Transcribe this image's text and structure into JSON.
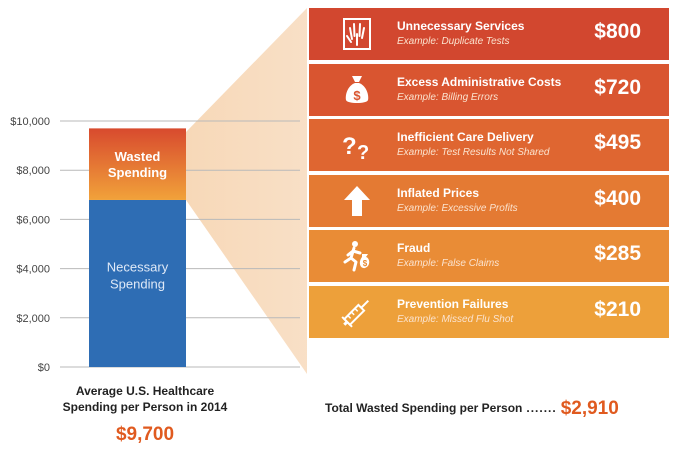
{
  "chart_data": {
    "type": "bar",
    "stacked": true,
    "categories": [
      "Average U.S. Healthcare Spending per Person in 2014"
    ],
    "series": [
      {
        "name": "Necessary Spending",
        "values": [
          6790
        ],
        "color": "#2e6db4"
      },
      {
        "name": "Wasted Spending",
        "values": [
          2910
        ],
        "color": "#e0612b"
      }
    ],
    "ylim": [
      0,
      10000
    ],
    "yticks": [
      0,
      2000,
      4000,
      6000,
      8000,
      10000
    ],
    "ytick_labels": [
      "$0",
      "$2,000",
      "$4,000",
      "$6,000",
      "$8,000",
      "$10,000"
    ],
    "grid": true,
    "segment_labels": {
      "wasted": [
        "Wasted",
        "Spending"
      ],
      "necessary": [
        "Necessary",
        "Spending"
      ]
    },
    "caption_lines": [
      "Average U.S. Healthcare",
      "Spending per Person in 2014"
    ],
    "total_label": "$9,700",
    "breakdown": {
      "items": [
        {
          "title": "Unnecessary Services",
          "example": "Example: Duplicate Tests",
          "value": 800,
          "label": "$800",
          "icon": "xray-hand-icon",
          "color": "#d2472f"
        },
        {
          "title": "Excess Administrative Costs",
          "example": "Example: Billing Errors",
          "value": 720,
          "label": "$720",
          "icon": "money-bag-icon",
          "color": "#d95530"
        },
        {
          "title": "Inefficient Care Delivery",
          "example": "Example: Test Results Not Shared",
          "value": 495,
          "label": "$495",
          "icon": "question-marks-icon",
          "color": "#df6631"
        },
        {
          "title": "Inflated Prices",
          "example": "Example: Excessive Profits",
          "value": 400,
          "label": "$400",
          "icon": "arrow-up-icon",
          "color": "#e47a33"
        },
        {
          "title": "Fraud",
          "example": "Example: False Claims",
          "value": 285,
          "label": "$285",
          "icon": "running-man-moneybag-icon",
          "color": "#e98c36"
        },
        {
          "title": "Prevention Failures",
          "example": "Example: Missed Flu Shot",
          "value": 210,
          "label": "$210",
          "icon": "syringe-icon",
          "color": "#eda03a"
        }
      ],
      "total_text": "Total Wasted Spending per Person",
      "dots": ".......",
      "total_label": "$2,910"
    }
  }
}
